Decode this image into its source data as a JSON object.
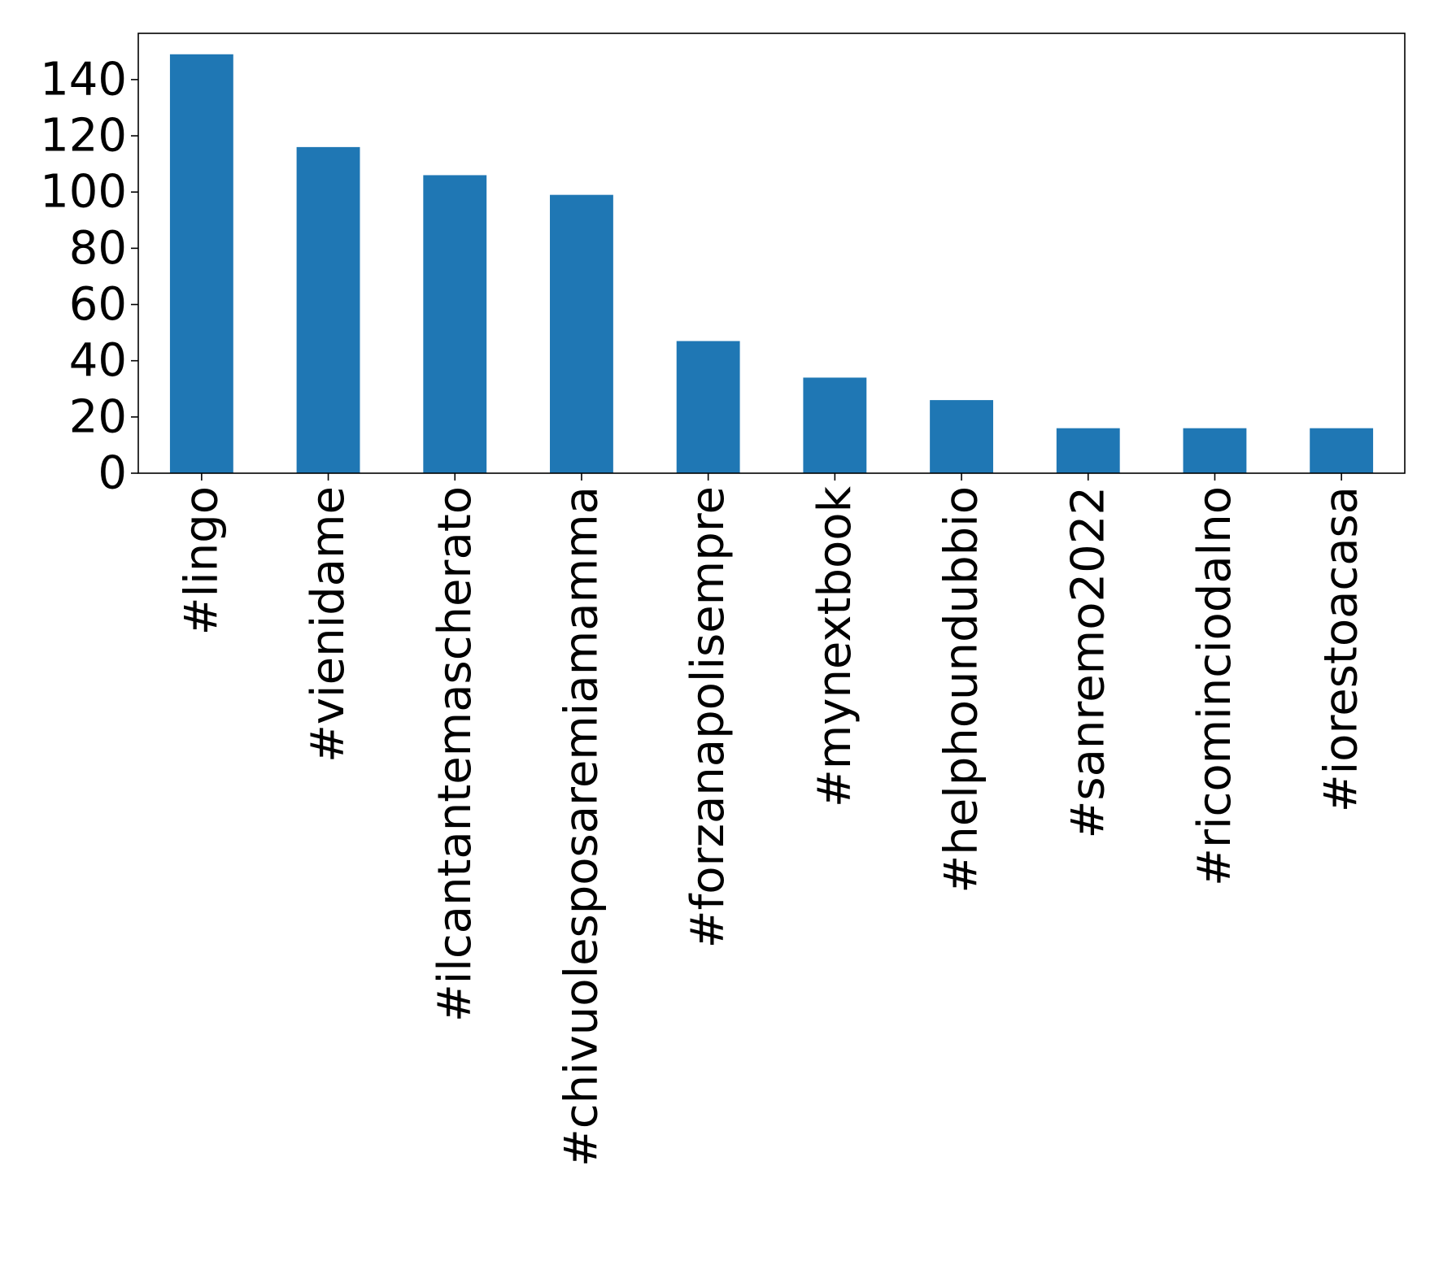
{
  "chart_data": {
    "type": "bar",
    "title": "",
    "xlabel": "",
    "ylabel": "",
    "categories": [
      "#lingo",
      "#vienidame",
      "#ilcantantemascherato",
      "#chivuolesposaremiamamma",
      "#forzanapolisempre",
      "#mynextbook",
      "#helphoundubbio",
      "#sanremo2022",
      "#ricominciodalno",
      "#iorestoacasa"
    ],
    "values": [
      149,
      116,
      106,
      99,
      47,
      34,
      26,
      16,
      16,
      16
    ],
    "ylim": [
      0,
      156.45
    ],
    "yticks": [
      0,
      20,
      40,
      60,
      80,
      100,
      120,
      140
    ],
    "x_tick_rotation": "vertical",
    "grid": false,
    "legend": "none",
    "colors": {
      "bar": "#1f77b4",
      "axis": "#000000",
      "background": "#ffffff"
    }
  }
}
